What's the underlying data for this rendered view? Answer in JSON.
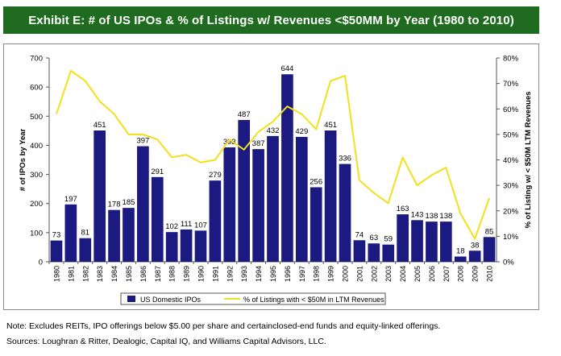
{
  "banner_title": "Exhibit E: # of US IPOs & % of Listings w/ Revenues <$50MM by Year (1980 to 2010)",
  "note": "Note: Excludes REITs, IPO offerings below $5.00 per share and certainclosed-end funds and equity-linked offerings.",
  "sources": "Sources: Loughran & Ritter, Dealogic, Capital IQ, and Williams Capital Advisors, LLC.",
  "colors": {
    "banner": "#1f6b1f",
    "bars": "#1a1a80",
    "line": "#f2e01a"
  },
  "chart_data": {
    "type": "bar",
    "categories": [
      "1980",
      "1981",
      "1982",
      "1983",
      "1984",
      "1985",
      "1986",
      "1987",
      "1988",
      "1989",
      "1990",
      "1991",
      "1992",
      "1993",
      "1994",
      "1995",
      "1996",
      "1997",
      "1998",
      "1999",
      "2000",
      "2001",
      "2002",
      "2003",
      "2004",
      "2005",
      "2006",
      "2007",
      "2008",
      "2009",
      "2010"
    ],
    "series": [
      {
        "name": "US Domestic IPOs",
        "type": "bar",
        "axis": "left",
        "values": [
          73,
          197,
          81,
          451,
          178,
          185,
          397,
          291,
          102,
          111,
          107,
          279,
          393,
          487,
          387,
          432,
          644,
          429,
          256,
          451,
          336,
          74,
          63,
          59,
          163,
          143,
          138,
          138,
          18,
          38,
          85
        ]
      },
      {
        "name": "% of Listings with < $50M in LTM Revenues",
        "type": "line",
        "axis": "right",
        "values": [
          58,
          75,
          71,
          63,
          58,
          50,
          50,
          48,
          41,
          42,
          39,
          40,
          48,
          44,
          51,
          55,
          61,
          58,
          52,
          71,
          73,
          32,
          27,
          23,
          41,
          30,
          34,
          37,
          19,
          9,
          25
        ]
      }
    ],
    "ylabel": "# of IPOs by Year",
    "y2label": "% of Listing w/ < $50M LTM Revenues",
    "ylim": [
      0,
      700
    ],
    "yticks": [
      "0",
      "100",
      "200",
      "300",
      "400",
      "500",
      "600",
      "700"
    ],
    "y2lim": [
      0,
      80
    ],
    "y2ticks": [
      "0%",
      "10%",
      "20%",
      "30%",
      "40%",
      "50%",
      "60%",
      "70%",
      "80%"
    ],
    "legend": [
      "US Domestic IPOs",
      "% of Listings with < $50M in LTM Revenues"
    ],
    "legend_position": "bottom",
    "grid": false
  }
}
